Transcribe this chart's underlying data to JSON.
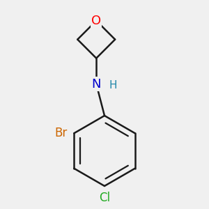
{
  "background_color": "#f0f0f0",
  "bond_color": "#1a1a1a",
  "bond_width": 1.8,
  "atom_colors": {
    "O": "#ff0000",
    "N": "#0000cc",
    "Br": "#cc6600",
    "Cl": "#22aa22",
    "H": "#2288aa"
  },
  "font_size": 12,
  "fig_width": 3.0,
  "fig_height": 3.0,
  "dpi": 100
}
